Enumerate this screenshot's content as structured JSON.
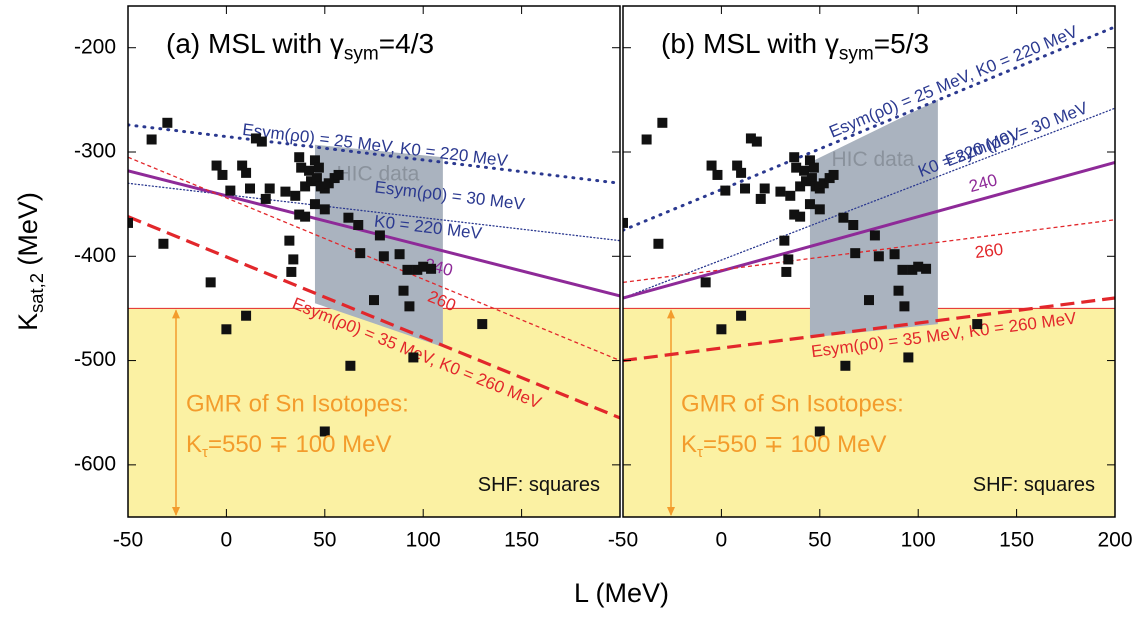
{
  "chart_data": [
    {
      "type": "scatter",
      "title": [
        "(a) MSL with γ",
        "sym",
        "=4/3"
      ],
      "y_label": [
        "K",
        "sat,2",
        " (MeV)"
      ],
      "x_label": "L (MeV)",
      "xlim": [
        -50,
        200
      ],
      "ylim": [
        -650,
        -160
      ],
      "xticks": [
        -50,
        0,
        50,
        100,
        150
      ],
      "yticks": [
        -200,
        -300,
        -400,
        -500,
        -600
      ],
      "band": {
        "range": [
          -650,
          -450
        ],
        "color": "#fbf1a3",
        "text": [
          "GMR of Sn Isotopes:",
          "K",
          "τ",
          "=550 ∓ 100 MeV"
        ]
      },
      "region": {
        "label": "HIC data",
        "color": "#aab3bf",
        "x": [
          45,
          110,
          110,
          45
        ],
        "values": [
          -293,
          -305,
          -487,
          -445
        ]
      },
      "points_label": "SHF: squares",
      "points": {
        "color": "#111111",
        "x": [
          -50,
          -38,
          -30,
          -32,
          -8,
          -5,
          0,
          -2,
          2,
          8,
          10,
          10,
          12,
          15,
          18,
          20,
          22,
          30,
          32,
          33,
          34,
          35,
          37,
          37,
          38,
          40,
          40,
          42,
          43,
          45,
          45,
          46,
          47,
          48,
          50,
          50,
          52,
          55,
          57,
          62,
          63,
          67,
          68,
          75,
          78,
          80,
          88,
          90,
          92,
          93,
          95,
          97,
          100,
          104,
          130,
          50
        ],
        "values": [
          -368,
          -288,
          -272,
          -388,
          -425,
          -313,
          -470,
          -322,
          -337,
          -313,
          -457,
          -320,
          -335,
          -287,
          -290,
          -345,
          -335,
          -338,
          -385,
          -415,
          -403,
          -342,
          -305,
          -360,
          -315,
          -362,
          -333,
          -318,
          -328,
          -308,
          -350,
          -325,
          -315,
          -333,
          -355,
          -335,
          -330,
          -325,
          -322,
          -363,
          -505,
          -370,
          -397,
          -442,
          -380,
          -400,
          -398,
          -433,
          -413,
          -448,
          -497,
          -413,
          -410,
          -412,
          -465,
          -568
        ]
      },
      "lines": [
        {
          "labels": [
            "Esym(ρ0) = 25 MeV, K0 = 220 MeV"
          ],
          "color": "#2b3990",
          "style": "dot-thick",
          "x": [
            -50,
            200
          ],
          "values": [
            -274,
            -330
          ]
        },
        {
          "labels": [
            "Esym(ρ0) = 30 MeV",
            "K0 = 220 MeV"
          ],
          "color": "#2b3990",
          "style": "dot-thin",
          "x": [
            -50,
            200
          ],
          "values": [
            -330,
            -385
          ]
        },
        {
          "labels": [
            "240"
          ],
          "color": "#8e2a98",
          "style": "solid",
          "x": [
            -50,
            200
          ],
          "values": [
            -318,
            -438
          ]
        },
        {
          "labels": [
            "260"
          ],
          "color": "#e2272b",
          "style": "dash-thin",
          "x": [
            -50,
            200
          ],
          "values": [
            -305,
            -500
          ]
        },
        {
          "labels": [
            "Esym(ρ0) = 35 MeV, K0 = 260 MeV"
          ],
          "color": "#e2272b",
          "style": "dash-thick",
          "x": [
            -50,
            200
          ],
          "values": [
            -362,
            -555
          ]
        }
      ]
    },
    {
      "type": "scatter",
      "title": [
        "(b) MSL with γ",
        "sym",
        "=5/3"
      ],
      "xlim": [
        -50,
        200
      ],
      "ylim": [
        -650,
        -160
      ],
      "xticks": [
        -50,
        0,
        50,
        100,
        150,
        200
      ],
      "band": {
        "range": [
          -650,
          -450
        ],
        "color": "#fbf1a3",
        "text": [
          "GMR of Sn Isotopes:",
          "K",
          "τ",
          "=550 ∓ 100 MeV"
        ]
      },
      "region": {
        "label": "HIC data",
        "color": "#aab3bf",
        "x": [
          45,
          110,
          110,
          45
        ],
        "values": [
          -310,
          -250,
          -465,
          -478
        ]
      },
      "points_label": "SHF: squares",
      "points": {
        "color": "#111111",
        "x": [
          -50,
          -38,
          -30,
          -32,
          -8,
          -5,
          0,
          -2,
          2,
          8,
          10,
          10,
          12,
          15,
          18,
          20,
          22,
          30,
          32,
          33,
          34,
          35,
          37,
          37,
          38,
          40,
          40,
          42,
          43,
          45,
          45,
          46,
          47,
          48,
          50,
          50,
          52,
          55,
          57,
          62,
          63,
          67,
          68,
          75,
          78,
          80,
          88,
          90,
          92,
          93,
          95,
          97,
          100,
          104,
          130,
          50
        ],
        "values": [
          -368,
          -288,
          -272,
          -388,
          -425,
          -313,
          -470,
          -322,
          -337,
          -313,
          -457,
          -320,
          -335,
          -287,
          -290,
          -345,
          -335,
          -338,
          -385,
          -415,
          -403,
          -342,
          -305,
          -360,
          -315,
          -362,
          -333,
          -318,
          -328,
          -308,
          -350,
          -325,
          -315,
          -333,
          -355,
          -335,
          -330,
          -325,
          -322,
          -363,
          -505,
          -370,
          -397,
          -442,
          -380,
          -400,
          -398,
          -433,
          -413,
          -448,
          -497,
          -413,
          -410,
          -412,
          -465,
          -568
        ]
      },
      "lines": [
        {
          "labels": [
            "Esym(ρ0) = 25 MeV, K0 = 220 MeV"
          ],
          "color": "#2b3990",
          "style": "dot-thick",
          "x": [
            -50,
            200
          ],
          "values": [
            -375,
            -180
          ]
        },
        {
          "labels": [
            "Esym(ρ0) = 30 MeV",
            "K0 = 220 MeV"
          ],
          "color": "#2b3990",
          "style": "dot-thin",
          "x": [
            -50,
            200
          ],
          "values": [
            -440,
            -258
          ]
        },
        {
          "labels": [
            "240"
          ],
          "color": "#8e2a98",
          "style": "solid",
          "x": [
            -50,
            200
          ],
          "values": [
            -440,
            -310
          ]
        },
        {
          "labels": [
            "260"
          ],
          "color": "#e2272b",
          "style": "dash-thin",
          "x": [
            -50,
            200
          ],
          "values": [
            -425,
            -365
          ]
        },
        {
          "labels": [
            "Esym(ρ0) = 35 MeV, K0 = 260 MeV"
          ],
          "color": "#e2272b",
          "style": "dash-thick",
          "x": [
            -50,
            200
          ],
          "values": [
            -500,
            -440
          ]
        }
      ]
    }
  ]
}
